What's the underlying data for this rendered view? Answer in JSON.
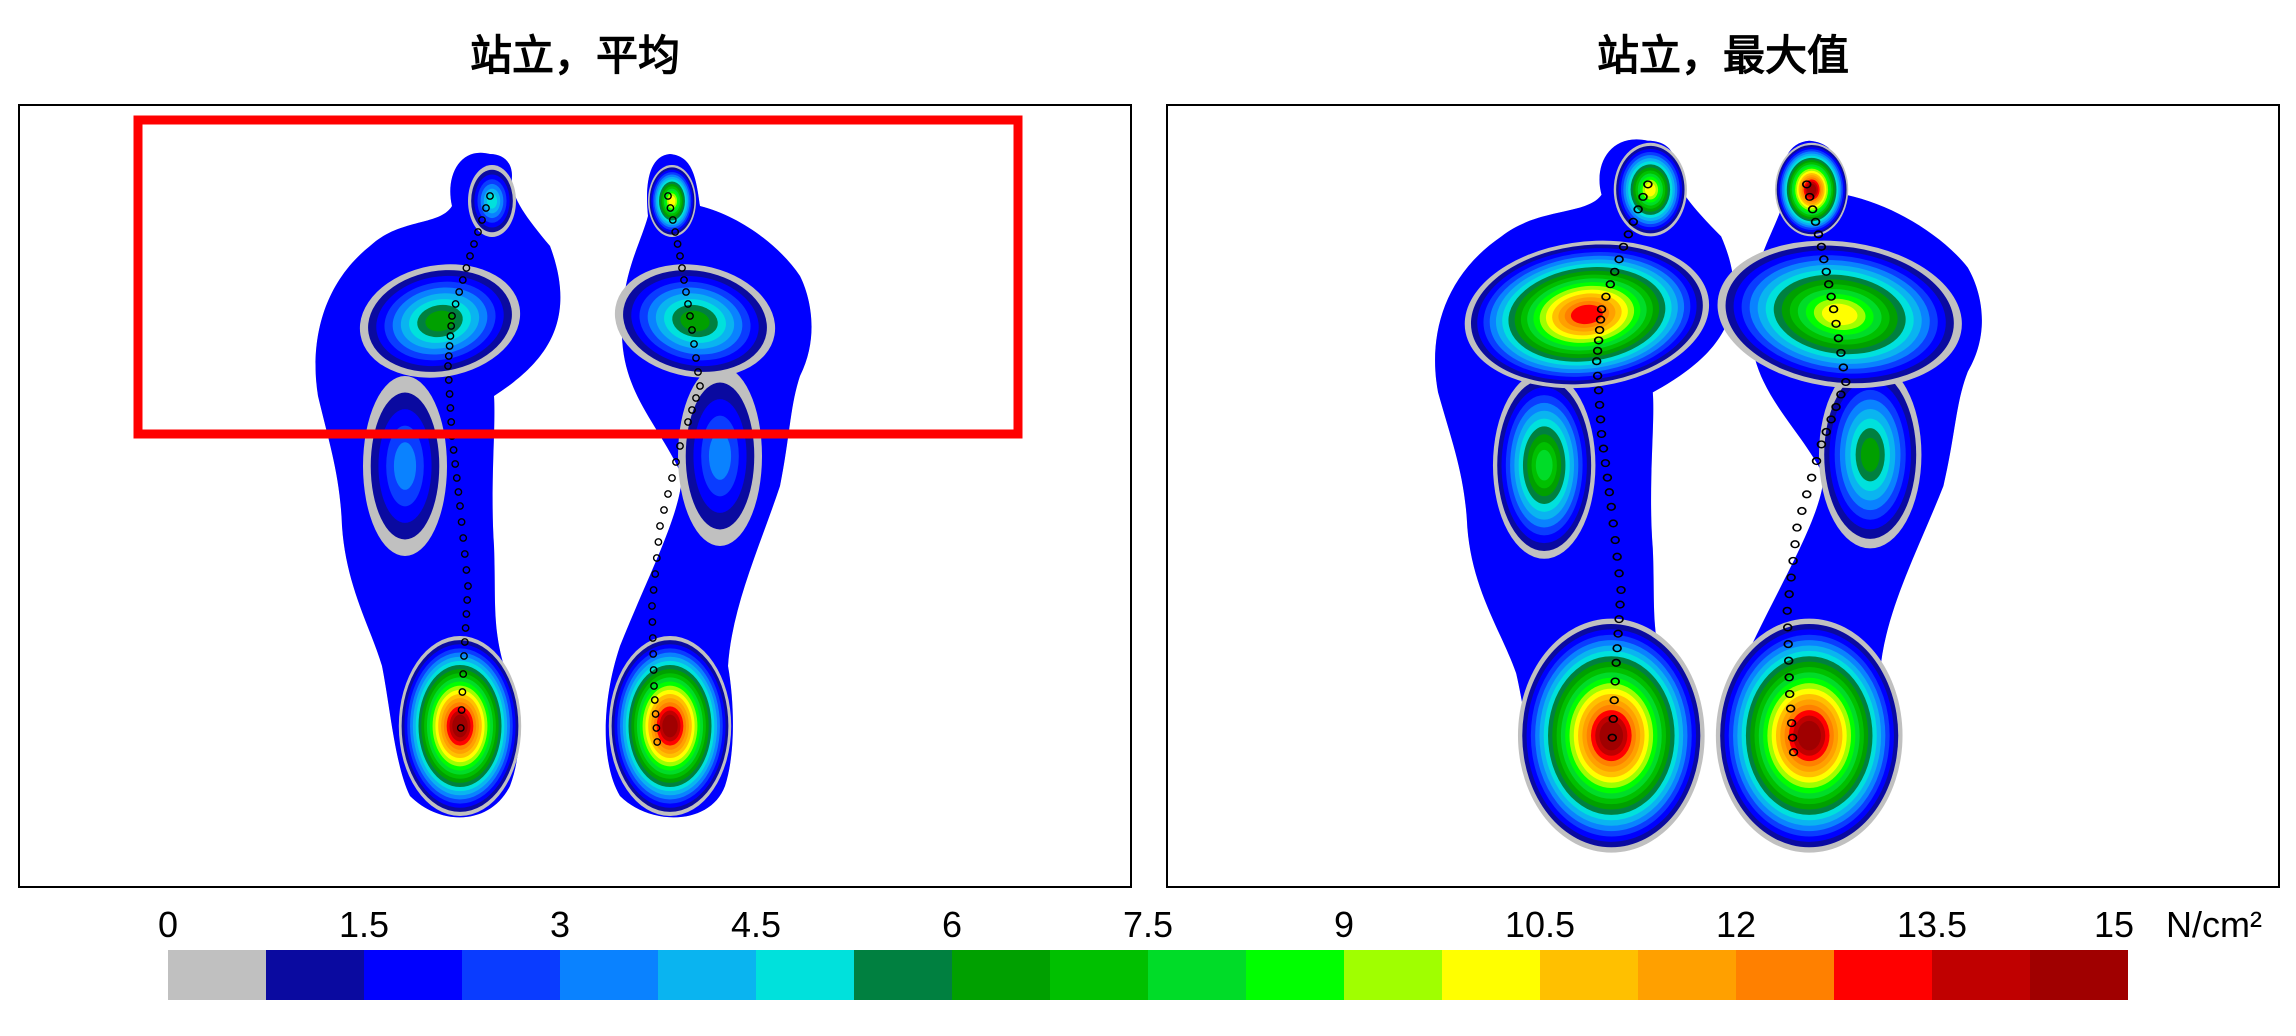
{
  "chart_data": {
    "type": "heatmap",
    "panels": [
      {
        "title": "站立，平均",
        "highlight_box": {
          "color": "#ff0000",
          "covers": "toes and forefoot region"
        },
        "regions": [
          {
            "foot": "left",
            "area": "heel",
            "pressure": 15
          },
          {
            "foot": "right",
            "area": "heel",
            "pressure": 15
          },
          {
            "foot": "left",
            "area": "forefoot",
            "pressure": 6.5
          },
          {
            "foot": "right",
            "area": "forefoot",
            "pressure": 6.5
          },
          {
            "foot": "left",
            "area": "midfoot",
            "pressure": 3
          },
          {
            "foot": "right",
            "area": "midfoot",
            "pressure": 3
          },
          {
            "foot": "left",
            "area": "hallux",
            "pressure": 4.5
          },
          {
            "foot": "right",
            "area": "hallux",
            "pressure": 10.5
          }
        ]
      },
      {
        "title": "站立，最大值",
        "regions": [
          {
            "foot": "left",
            "area": "heel",
            "pressure": 15
          },
          {
            "foot": "right",
            "area": "heel",
            "pressure": 15
          },
          {
            "foot": "left",
            "area": "forefoot",
            "pressure": 13.5
          },
          {
            "foot": "right",
            "area": "forefoot",
            "pressure": 10.5
          },
          {
            "foot": "left",
            "area": "midfoot",
            "pressure": 7.5
          },
          {
            "foot": "right",
            "area": "midfoot",
            "pressure": 6
          },
          {
            "foot": "left",
            "area": "hallux",
            "pressure": 10.5
          },
          {
            "foot": "right",
            "area": "hallux",
            "pressure": 15
          }
        ]
      }
    ],
    "colorbar": {
      "ticks": [
        "0",
        "1.5",
        "3",
        "4.5",
        "6",
        "7.5",
        "9",
        "10.5",
        "12",
        "13.5",
        "15"
      ],
      "unit": "N/cm²",
      "range": [
        0,
        15
      ],
      "colors": [
        "#c0c0c0",
        "#0a0aa0",
        "#0000ff",
        "#0a3cff",
        "#0a82ff",
        "#0ab4f0",
        "#00e1dc",
        "#008040",
        "#00a000",
        "#00c000",
        "#00dc28",
        "#00ff00",
        "#a0ff00",
        "#ffff00",
        "#ffc000",
        "#ffa000",
        "#ff8000",
        "#ff0000",
        "#c00000",
        "#a00000"
      ]
    }
  }
}
